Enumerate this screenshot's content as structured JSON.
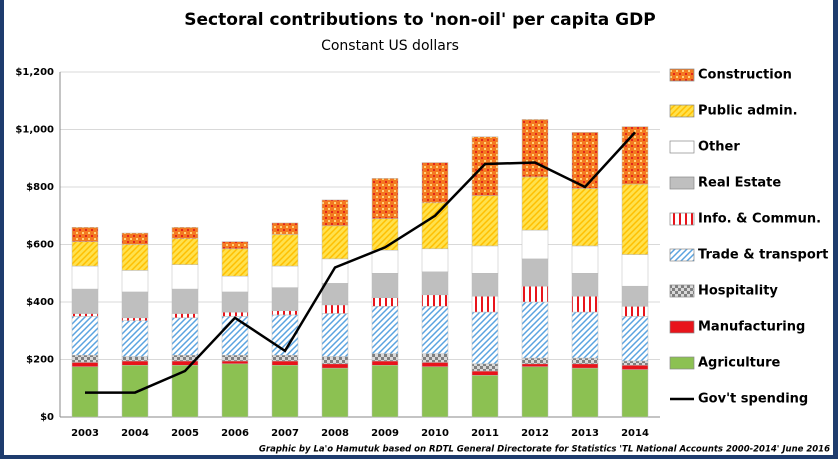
{
  "chart_data": {
    "type": "stacked_bar_line",
    "title": "Sectoral contributions to 'non-oil' per capita GDP",
    "subtitle": "Constant US dollars",
    "source": "Graphic by La'o Hamutuk based on RDTL General Directorate for Statistics 'TL National Accounts 2000-2014' June 2016",
    "categories": [
      "2003",
      "2004",
      "2005",
      "2006",
      "2007",
      "2008",
      "2009",
      "2010",
      "2011",
      "2012",
      "2013",
      "2014"
    ],
    "series": [
      {
        "name": "Agriculture",
        "color": "#8cc152",
        "values": [
          175,
          180,
          180,
          185,
          180,
          170,
          180,
          175,
          145,
          175,
          170,
          165
        ]
      },
      {
        "name": "Manufacturing",
        "color": "#e8141b",
        "values": [
          15,
          15,
          15,
          10,
          15,
          15,
          15,
          15,
          15,
          10,
          15,
          15
        ]
      },
      {
        "name": "Hospitality",
        "color": "#7f7f7f",
        "values": [
          25,
          15,
          20,
          20,
          20,
          25,
          25,
          30,
          25,
          20,
          20,
          15
        ]
      },
      {
        "name": "Trade & transport",
        "color": "#5aa3e0",
        "values": [
          135,
          125,
          130,
          135,
          140,
          150,
          165,
          165,
          180,
          195,
          160,
          155
        ]
      },
      {
        "name": "Info. & Commun.",
        "color": "#e8141b",
        "values": [
          10,
          10,
          15,
          15,
          15,
          30,
          30,
          40,
          55,
          55,
          55,
          35
        ]
      },
      {
        "name": "Real Estate",
        "color": "#bfbfbf",
        "values": [
          85,
          90,
          85,
          70,
          80,
          75,
          85,
          80,
          80,
          95,
          80,
          70
        ]
      },
      {
        "name": "Other",
        "color": "#ffffff",
        "values": [
          80,
          75,
          85,
          55,
          75,
          85,
          80,
          80,
          95,
          100,
          95,
          110
        ]
      },
      {
        "name": "Public admin.",
        "color": "#ffc000",
        "values": [
          85,
          90,
          90,
          95,
          110,
          115,
          110,
          160,
          175,
          185,
          200,
          245
        ]
      },
      {
        "name": "Construction",
        "color": "#f47920",
        "values": [
          50,
          40,
          40,
          25,
          40,
          90,
          140,
          140,
          205,
          200,
          195,
          200
        ]
      }
    ],
    "line": {
      "name": "Gov't spending",
      "color": "#000000",
      "values": [
        85,
        85,
        160,
        345,
        230,
        520,
        590,
        700,
        880,
        885,
        800,
        990
      ]
    },
    "ylim": [
      0,
      1200
    ],
    "yticks": [
      {
        "value": 0,
        "label": "$0"
      },
      {
        "value": 200,
        "label": "$200"
      },
      {
        "value": 400,
        "label": "$400"
      },
      {
        "value": 600,
        "label": "$600"
      },
      {
        "value": 800,
        "label": "$800"
      },
      {
        "value": 1000,
        "label": "$1,000"
      },
      {
        "value": 1200,
        "label": "$1,200"
      }
    ],
    "grid": true,
    "legend": "right"
  }
}
